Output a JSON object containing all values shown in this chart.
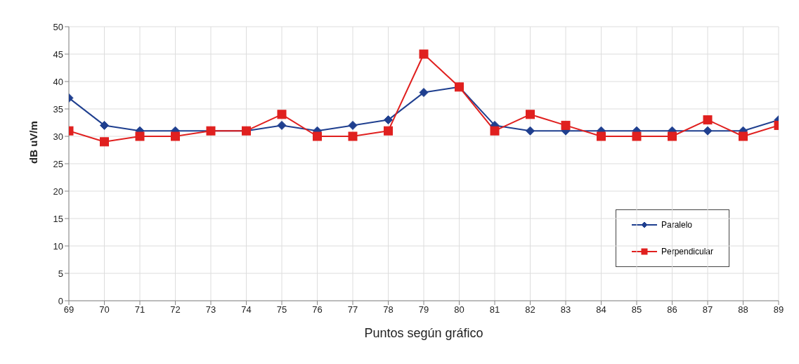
{
  "chart_data": {
    "type": "line",
    "xlabel": "Puntos según gráfico",
    "ylabel": "dB uV/m",
    "x": [
      69,
      70,
      71,
      72,
      73,
      74,
      75,
      76,
      77,
      78,
      79,
      80,
      81,
      82,
      83,
      84,
      85,
      86,
      87,
      88,
      89
    ],
    "xlim": [
      69,
      89
    ],
    "xticks": [
      69,
      70,
      71,
      72,
      73,
      74,
      75,
      76,
      77,
      78,
      79,
      80,
      81,
      82,
      83,
      84,
      85,
      86,
      87,
      88,
      89
    ],
    "ylim": [
      0,
      50
    ],
    "yticks": [
      0,
      5,
      10,
      15,
      20,
      25,
      30,
      35,
      40,
      45,
      50
    ],
    "grid": true,
    "legend": "right",
    "line_style": "solid",
    "series": [
      {
        "name": "Paralelo",
        "color": "#1f3f8f",
        "marker": "diamond",
        "values": [
          37,
          32,
          31,
          31,
          31,
          31,
          32,
          31,
          32,
          33,
          38,
          39,
          32,
          31,
          31,
          31,
          31,
          31,
          31,
          31,
          33
        ]
      },
      {
        "name": "Perpendicular",
        "color": "#e0201f",
        "marker": "square",
        "values": [
          31,
          29,
          30,
          30,
          31,
          31,
          34,
          30,
          30,
          31,
          45,
          39,
          31,
          34,
          32,
          30,
          30,
          30,
          33,
          30,
          32
        ]
      }
    ]
  }
}
